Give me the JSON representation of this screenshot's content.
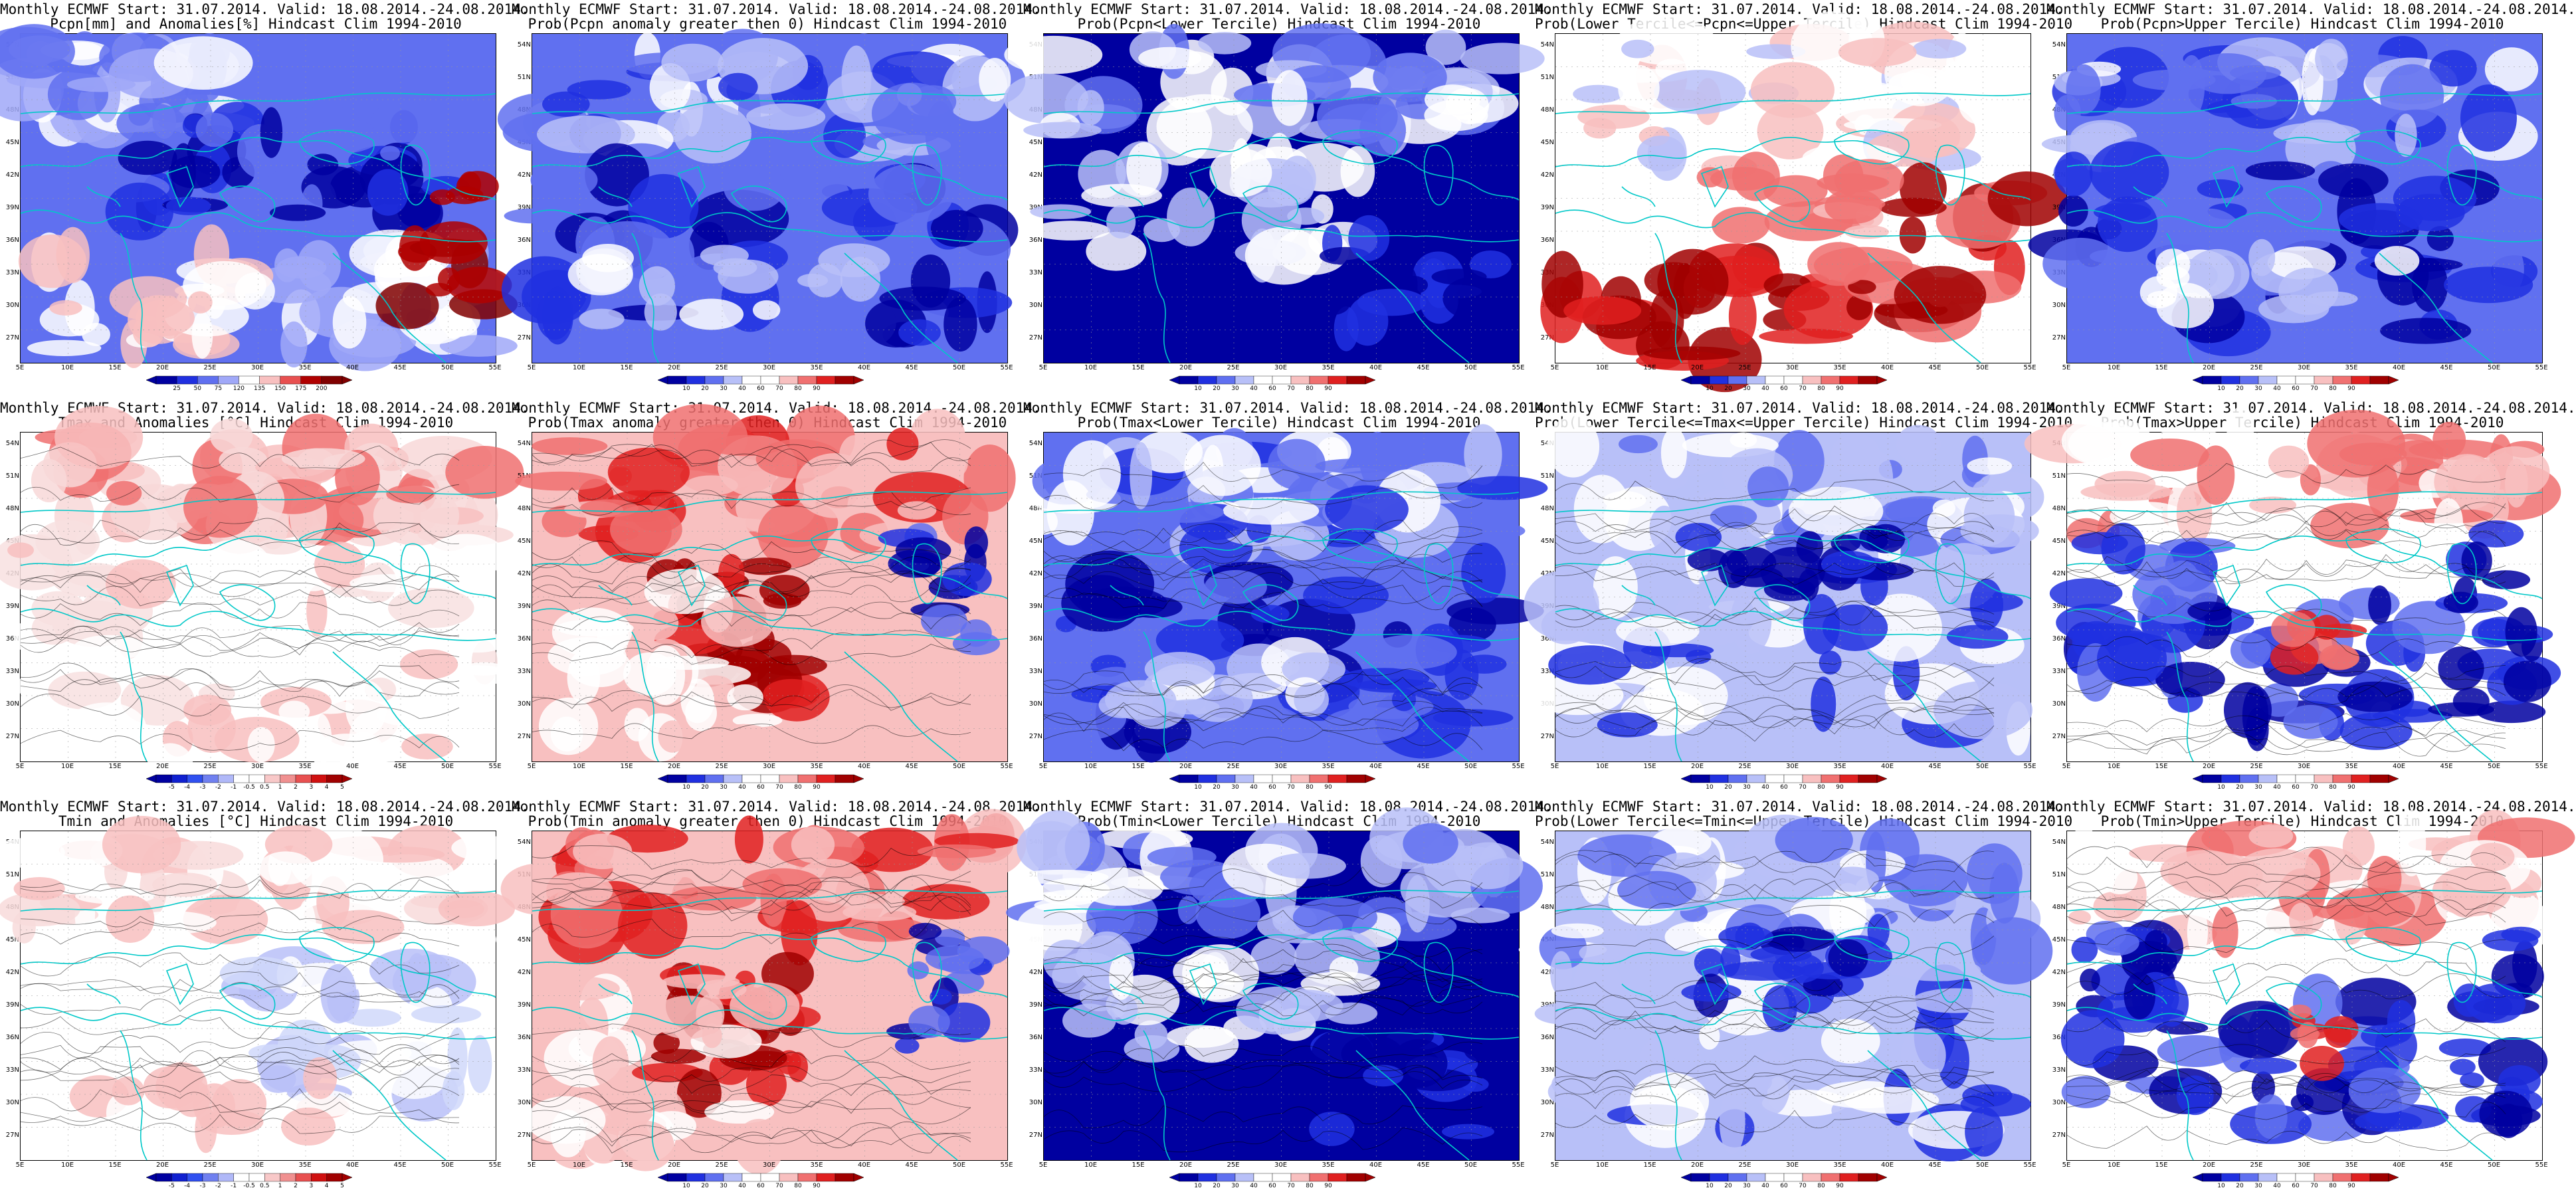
{
  "panels": [
    {
      "line1": "Monthly ECMWF Start: 31.07.2014. Valid: 18.08.2014.-24.08.2014.",
      "line2": "Pcpn[mm] and Anomalies[%] Hindcast Clim 1994-2010",
      "cbar": [
        "25",
        "50",
        "75",
        "120",
        "135",
        "150",
        "175",
        "200"
      ],
      "scheme": "precip"
    },
    {
      "line1": "Monthly ECMWF Start: 31.07.2014. Valid: 18.08.2014.-24.08.2014.",
      "line2": "Prob(Pcpn anomaly greater then 0) Hindcast Clim 1994-2010",
      "cbar": [
        "10",
        "20",
        "30",
        "40",
        "60",
        "70",
        "80",
        "90"
      ],
      "scheme": "prob_blue"
    },
    {
      "line1": "Monthly ECMWF Start: 31.07.2014. Valid: 18.08.2014.-24.08.2014.",
      "line2": "Prob(Pcpn<Lower Tercile) Hindcast Clim 1994-2010",
      "cbar": [
        "10",
        "20",
        "30",
        "40",
        "60",
        "70",
        "80",
        "90"
      ],
      "scheme": "prob_deepblue"
    },
    {
      "line1": "Monthly ECMWF Start: 31.07.2014. Valid: 18.08.2014.-24.08.2014.",
      "line2": "Prob(Lower Tercile<=Pcpn<=Upper Tercile) Hindcast Clim 1994-2010",
      "cbar": [
        "10",
        "20",
        "30",
        "40",
        "60",
        "70",
        "80",
        "90"
      ],
      "scheme": "prob_redsouth"
    },
    {
      "line1": "Monthly ECMWF Start: 31.07.2014. Valid: 18.08.2014.-24.08.2014.",
      "line2": "Prob(Pcpn>Upper Tercile) Hindcast Clim 1994-2010",
      "cbar": [
        "10",
        "20",
        "30",
        "40",
        "60",
        "70",
        "80",
        "90"
      ],
      "scheme": "prob_blue"
    },
    {
      "line1": "Monthly ECMWF Start: 31.07.2014. Valid: 18.08.2014.-24.08.2014.",
      "line2": "Tmax and Anomalies [°C] Hindcast Clim 1994-2010",
      "cbar": [
        "-5",
        "-4",
        "-3",
        "-2",
        "-1",
        "-0.5",
        "0.5",
        "1",
        "2",
        "3",
        "4",
        "5"
      ],
      "scheme": "anom_warm"
    },
    {
      "line1": "Monthly ECMWF Start: 31.07.2014. Valid: 18.08.2014.-24.08.2014.",
      "line2": "Prob(Tmax anomaly greater then 0) Hindcast Clim 1994-2010",
      "cbar": [
        "10",
        "20",
        "30",
        "40",
        "60",
        "70",
        "80",
        "90"
      ],
      "scheme": "prob_red"
    },
    {
      "line1": "Monthly ECMWF Start: 31.07.2014. Valid: 18.08.2014.-24.08.2014.",
      "line2": "Prob(Tmax<Lower Tercile) Hindcast Clim 1994-2010",
      "cbar": [
        "10",
        "20",
        "30",
        "40",
        "60",
        "70",
        "80",
        "90"
      ],
      "scheme": "prob_blue"
    },
    {
      "line1": "Monthly ECMWF Start: 31.07.2014. Valid: 18.08.2014.-24.08.2014.",
      "line2": "Prob(Lower Tercile<=Tmax<=Upper Tercile) Hindcast Clim 1994-2010",
      "cbar": [
        "10",
        "20",
        "30",
        "40",
        "60",
        "70",
        "80",
        "90"
      ],
      "scheme": "prob_mixed"
    },
    {
      "line1": "Monthly ECMWF Start: 31.07.2014. Valid: 18.08.2014.-24.08.2014.",
      "line2": "Prob(Tmax>Upper Tercile) Hindcast Clim 1994-2010",
      "cbar": [
        "10",
        "20",
        "30",
        "40",
        "60",
        "70",
        "80",
        "90"
      ],
      "scheme": "prob_redblue"
    },
    {
      "line1": "Monthly ECMWF Start: 31.07.2014. Valid: 18.08.2014.-24.08.2014.",
      "line2": "Tmin and Anomalies [°C] Hindcast Clim 1994-2010",
      "cbar": [
        "-5",
        "-4",
        "-3",
        "-2",
        "-1",
        "-0.5",
        "0.5",
        "1",
        "2",
        "3",
        "4",
        "5"
      ],
      "scheme": "anom_mild"
    },
    {
      "line1": "Monthly ECMWF Start: 31.07.2014. Valid: 18.08.2014.-24.08.2014.",
      "line2": "Prob(Tmin anomaly greater then 0) Hindcast Clim 1994-2010",
      "cbar": [
        "10",
        "20",
        "30",
        "40",
        "60",
        "70",
        "80",
        "90"
      ],
      "scheme": "prob_red"
    },
    {
      "line1": "Monthly ECMWF Start: 31.07.2014. Valid: 18.08.2014.-24.08.2014.",
      "line2": "Prob(Tmin<Lower Tercile) Hindcast Clim 1994-2010",
      "cbar": [
        "10",
        "20",
        "30",
        "40",
        "60",
        "70",
        "80",
        "90"
      ],
      "scheme": "prob_deepblue"
    },
    {
      "line1": "Monthly ECMWF Start: 31.07.2014. Valid: 18.08.2014.-24.08.2014.",
      "line2": "Prob(Lower Tercile<=Tmin<=Upper Tercile) Hindcast Clim 1994-2010",
      "cbar": [
        "10",
        "20",
        "30",
        "40",
        "60",
        "70",
        "80",
        "90"
      ],
      "scheme": "prob_mixed"
    },
    {
      "line1": "Monthly ECMWF Start: 31.07.2014. Valid: 18.08.2014.-24.08.2014.",
      "line2": "Prob(Tmin>Upper Tercile) Hindcast Clim 1994-2010",
      "cbar": [
        "10",
        "20",
        "30",
        "40",
        "60",
        "70",
        "80",
        "90"
      ],
      "scheme": "prob_redblue"
    }
  ],
  "lat_labels": [
    "54N",
    "51N",
    "48N",
    "45N",
    "42N",
    "39N",
    "36N",
    "33N",
    "30N",
    "27N"
  ],
  "lon_labels": [
    "5E",
    "10E",
    "15E",
    "20E",
    "25E",
    "30E",
    "35E",
    "40E",
    "45E",
    "50E",
    "55E"
  ],
  "colors": {
    "coast": "#00c8c8",
    "contour": "#000000",
    "deep_blue": "#0000a0",
    "blue": "#2030e0",
    "mid_blue": "#6070f0",
    "light_blue": "#b8c0f8",
    "white": "#ffffff",
    "light_red": "#f8c0c0",
    "mid_red": "#f07070",
    "red": "#e02020",
    "deep_red": "#a00000"
  }
}
